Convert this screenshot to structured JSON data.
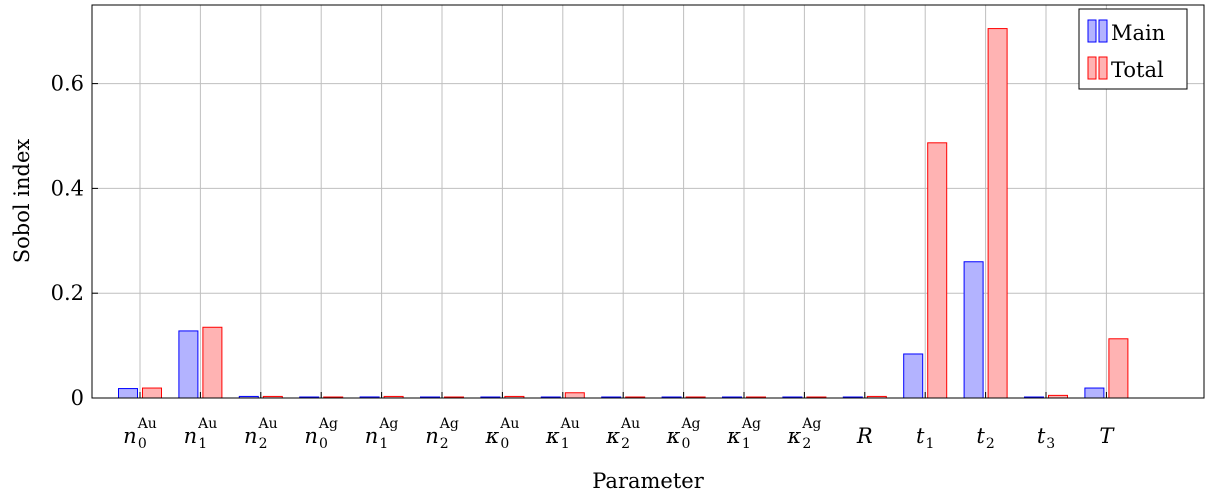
{
  "chart_data": {
    "type": "bar",
    "xlabel": "Parameter",
    "ylabel": "Sobol index",
    "ylim": [
      0,
      0.75
    ],
    "yticks": [
      0,
      0.2,
      0.4,
      0.6
    ],
    "ytick_labels": [
      "0",
      "0.2",
      "0.4",
      "0.6"
    ],
    "grid": true,
    "legend_position": "top-right",
    "categories": [
      {
        "base": "n",
        "sub": "0",
        "sup": "Au"
      },
      {
        "base": "n",
        "sub": "1",
        "sup": "Au"
      },
      {
        "base": "n",
        "sub": "2",
        "sup": "Au"
      },
      {
        "base": "n",
        "sub": "0",
        "sup": "Ag"
      },
      {
        "base": "n",
        "sub": "1",
        "sup": "Ag"
      },
      {
        "base": "n",
        "sub": "2",
        "sup": "Ag"
      },
      {
        "base": "κ",
        "sub": "0",
        "sup": "Au"
      },
      {
        "base": "κ",
        "sub": "1",
        "sup": "Au"
      },
      {
        "base": "κ",
        "sub": "2",
        "sup": "Au"
      },
      {
        "base": "κ",
        "sub": "0",
        "sup": "Ag"
      },
      {
        "base": "κ",
        "sub": "1",
        "sup": "Ag"
      },
      {
        "base": "κ",
        "sub": "2",
        "sup": "Ag"
      },
      {
        "base": "R",
        "sub": "",
        "sup": ""
      },
      {
        "base": "t",
        "sub": "1",
        "sup": ""
      },
      {
        "base": "t",
        "sub": "2",
        "sup": ""
      },
      {
        "base": "t",
        "sub": "3",
        "sup": ""
      },
      {
        "base": "T",
        "sub": "",
        "sup": ""
      }
    ],
    "series": [
      {
        "name": "Main",
        "fill": "#b3b3ff",
        "stroke": "#0000ff",
        "values": [
          0.018,
          0.128,
          0.003,
          0.001,
          0.002,
          0.001,
          0.001,
          0.001,
          0.001,
          0.001,
          0.001,
          0.001,
          0.001,
          0.084,
          0.26,
          0.001,
          0.019
        ]
      },
      {
        "name": "Total",
        "fill": "#ffb3b3",
        "stroke": "#ff0000",
        "values": [
          0.019,
          0.135,
          0.003,
          0.001,
          0.003,
          0.001,
          0.003,
          0.01,
          0.001,
          0.001,
          0.001,
          0.001,
          0.003,
          0.487,
          0.705,
          0.005,
          0.113
        ]
      }
    ]
  }
}
